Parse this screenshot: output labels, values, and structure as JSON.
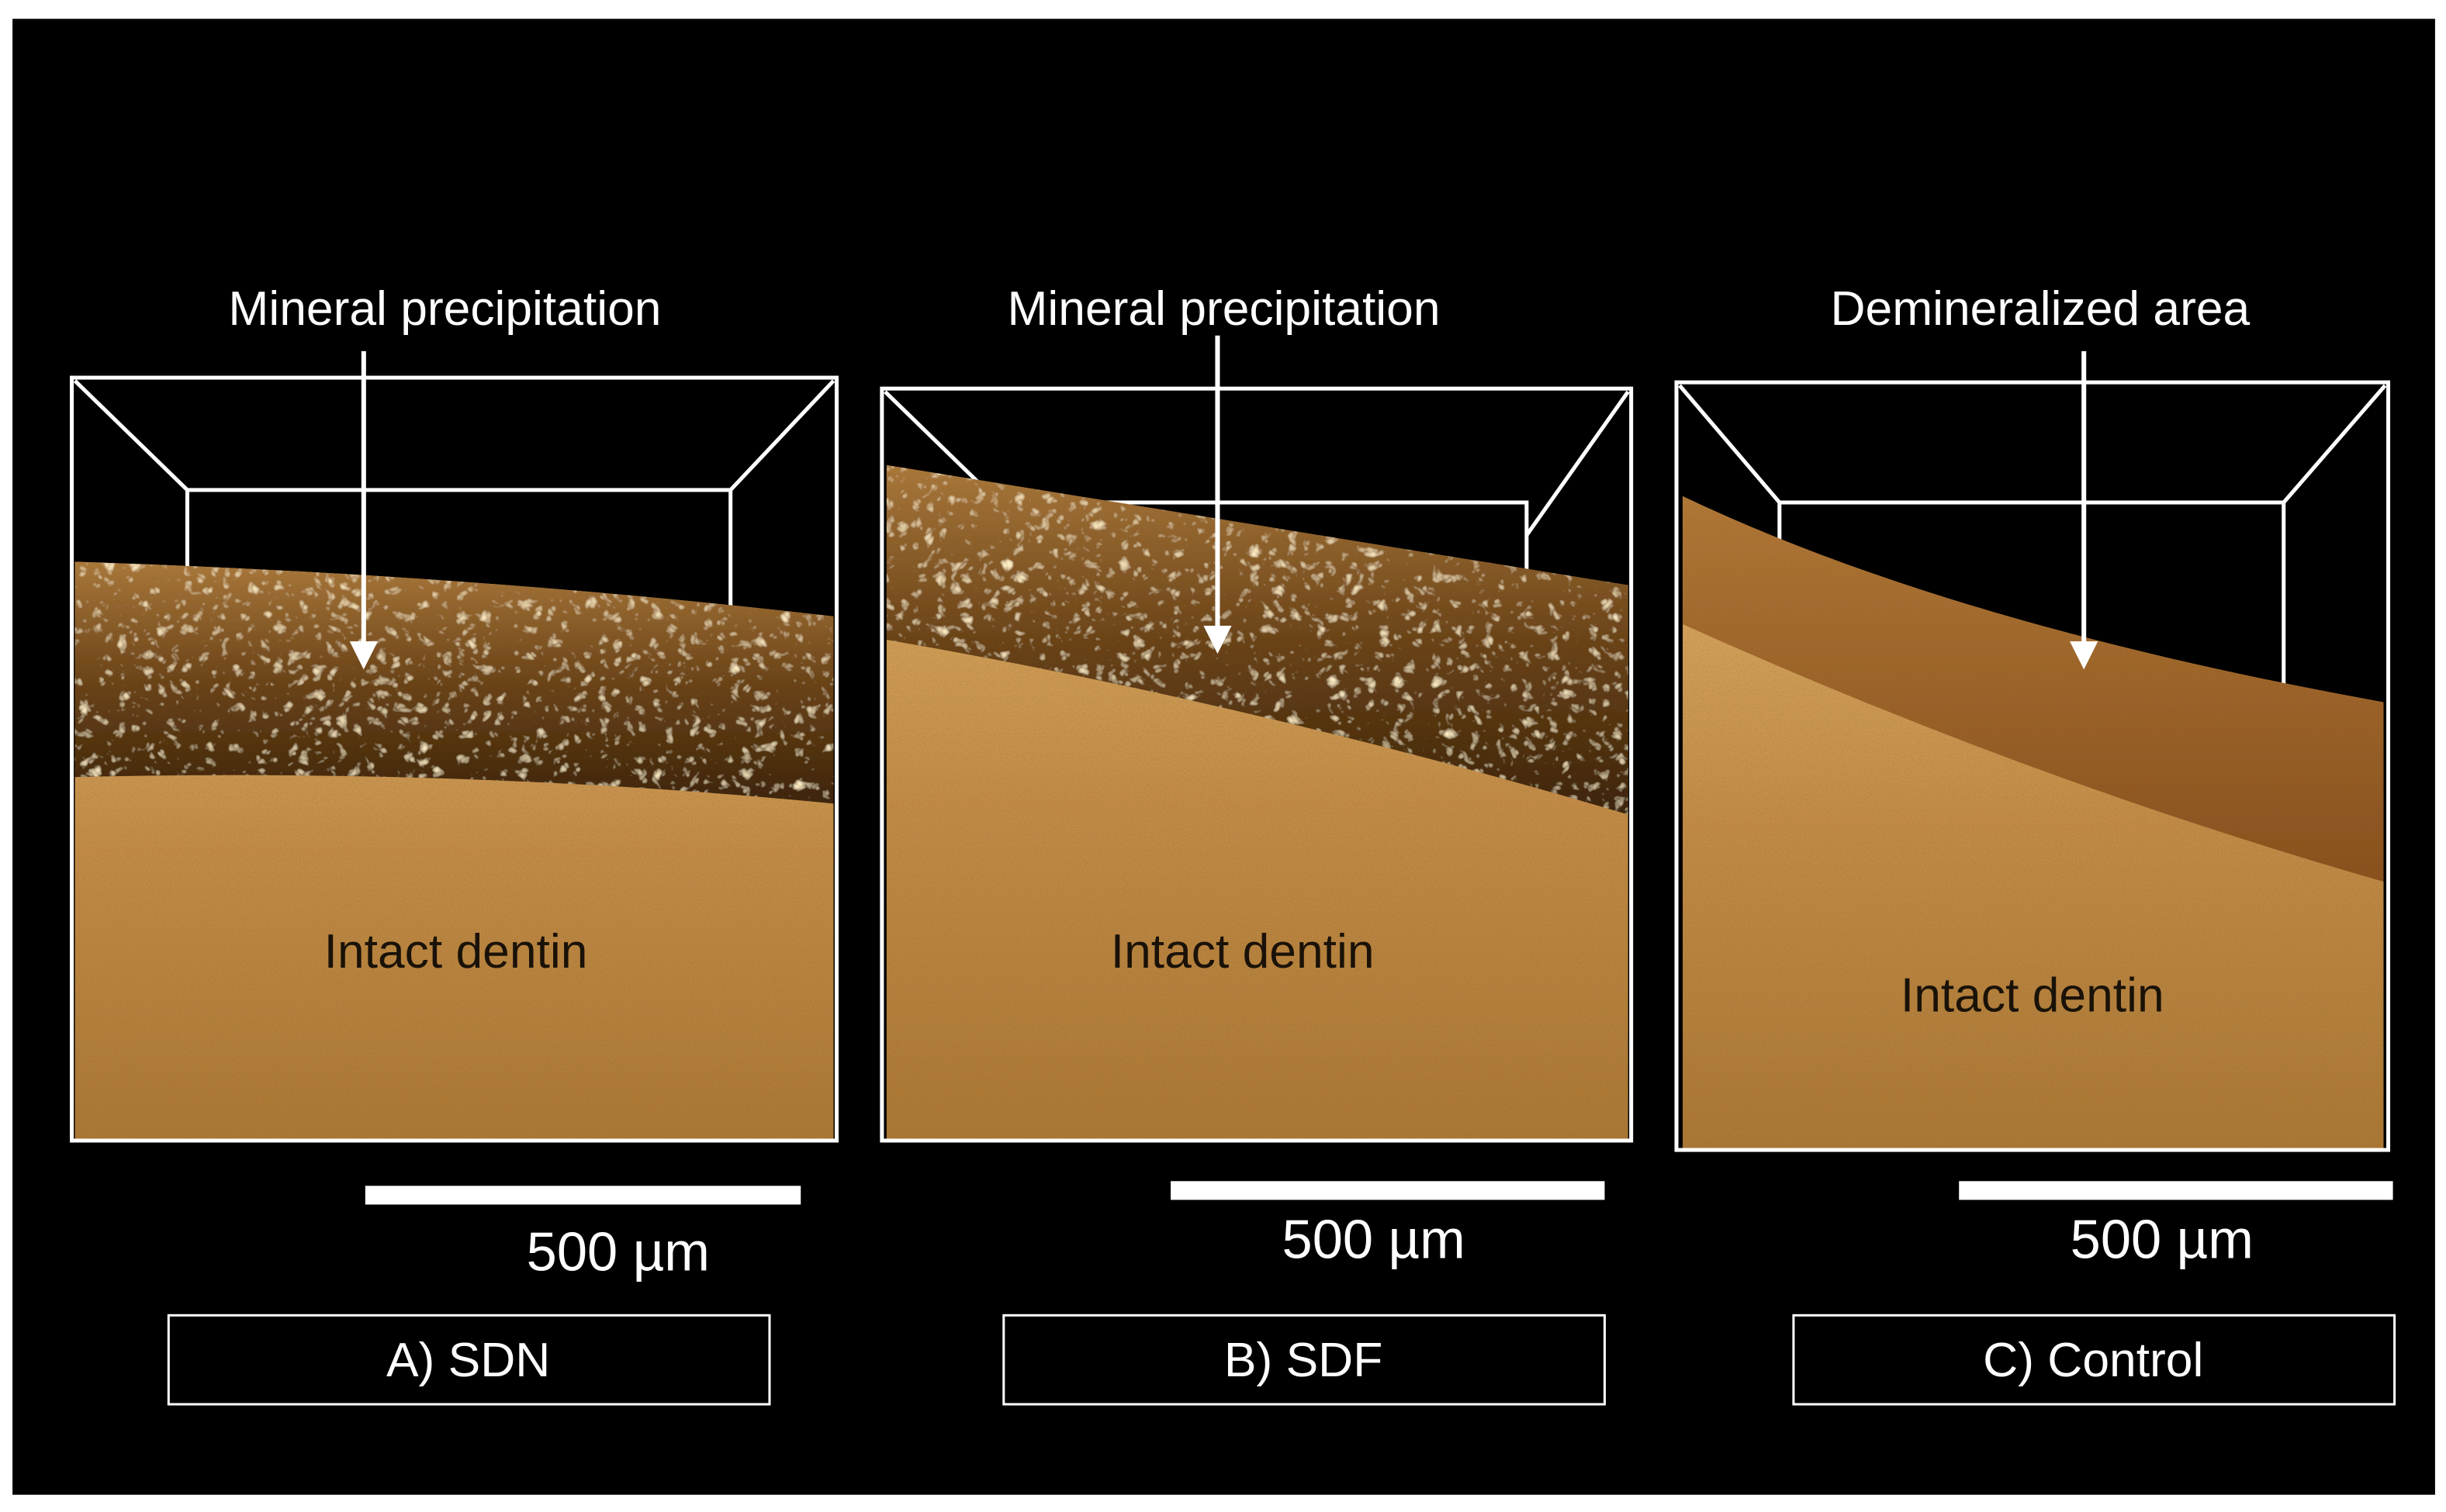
{
  "panels": [
    {
      "annotation": "Mineral precipitation",
      "region_label": "Intact dentin",
      "scale_bar": "500 µm",
      "caption": "A) SDN"
    },
    {
      "annotation": "Mineral precipitation",
      "region_label": "Intact dentin",
      "scale_bar": "500 µm",
      "caption": "B) SDF"
    },
    {
      "annotation": "Demineralized area",
      "region_label": "Intact dentin",
      "scale_bar": "500 µm",
      "caption": "C) Control"
    }
  ]
}
